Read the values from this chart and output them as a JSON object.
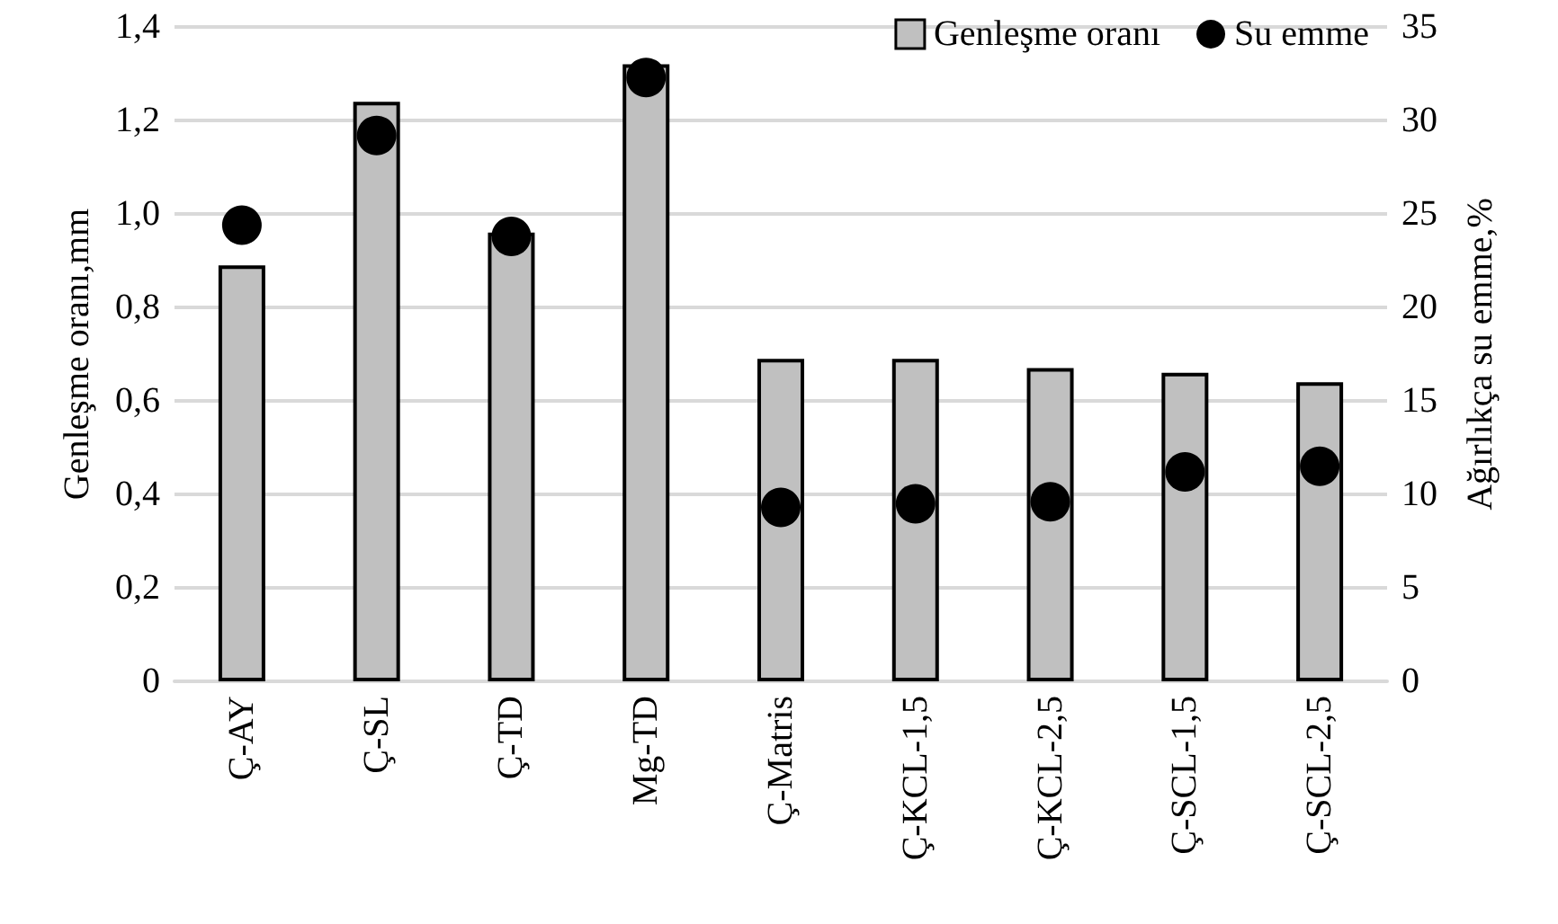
{
  "chart_data": {
    "type": "bar",
    "categories": [
      "Ç-AY",
      "Ç-SL",
      "Ç-TD",
      "Mg-TD",
      "Ç-Matris",
      "Ç-KCL-1,5",
      "Ç-KCL-2,5",
      "Ç-SCL-1,5",
      "Ç-SCL-2,5"
    ],
    "series": [
      {
        "name": "Genleşme oranı",
        "color": "#c0c0c0",
        "values": [
          0.89,
          1.24,
          0.96,
          1.32,
          0.69,
          0.69,
          0.67,
          0.66,
          0.64
        ]
      },
      {
        "name": "Su emme",
        "type": "scatter",
        "axis": "y2",
        "color": "#000000",
        "marker": "circle",
        "values": [
          24.4,
          29.2,
          23.8,
          32.3,
          9.3,
          9.5,
          9.6,
          11.2,
          11.5
        ]
      }
    ],
    "ylabel": "Genleşme oranı,mm",
    "y2label": "Ağırlıkça su emme,%",
    "ylim": [
      0,
      1.4
    ],
    "yticks": [
      {
        "value": 0,
        "label": "0"
      },
      {
        "value": 0.2,
        "label": "0,2"
      },
      {
        "value": 0.4,
        "label": "0,4"
      },
      {
        "value": 0.6,
        "label": "0,6"
      },
      {
        "value": 0.8,
        "label": "0,8"
      },
      {
        "value": 1.0,
        "label": "1,0"
      },
      {
        "value": 1.2,
        "label": "1,2"
      },
      {
        "value": 1.4,
        "label": "1,4"
      }
    ],
    "y2lim": [
      0,
      35
    ],
    "y2ticks": [
      0,
      5,
      10,
      15,
      20,
      25,
      30,
      35
    ],
    "grid": "y",
    "legend": "top right"
  }
}
